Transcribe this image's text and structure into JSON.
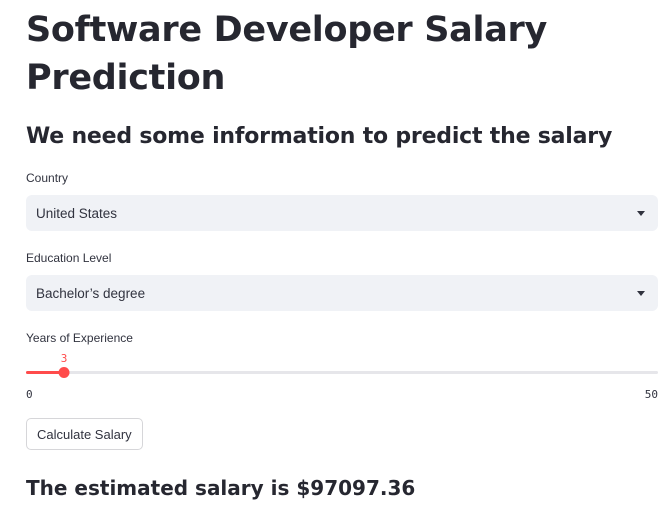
{
  "app": {
    "title": "Software Developer Salary Prediction",
    "subtitle": "We need some information to predict the salary"
  },
  "form": {
    "country": {
      "label": "Country",
      "value": "United States"
    },
    "education": {
      "label": "Education Level",
      "value": "Bachelor’s degree"
    },
    "experience": {
      "label": "Years of Experience",
      "value": 3,
      "min": 0,
      "max": 50
    },
    "submit_label": "Calculate Salary"
  },
  "result": {
    "text": "The estimated salary is $97097.36"
  },
  "colors": {
    "accent": "#ff4b4b",
    "select_bg": "#f0f2f6",
    "text": "#31333f"
  }
}
